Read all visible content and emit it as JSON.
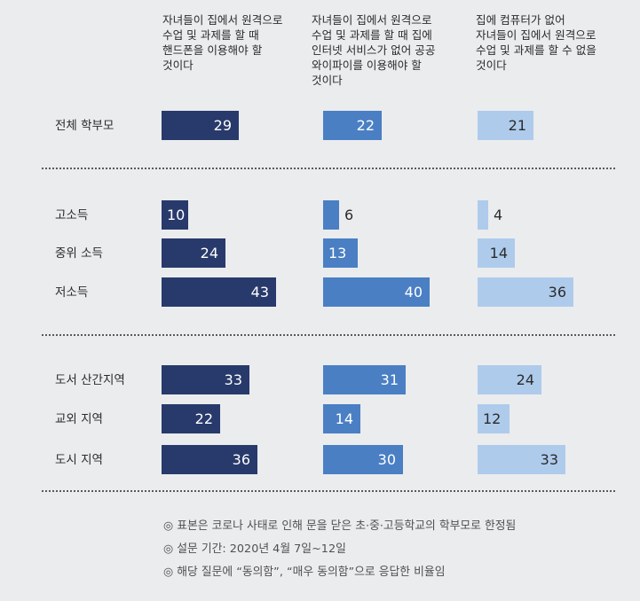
{
  "chart_data": {
    "type": "bar",
    "orientation": "horizontal",
    "series": [
      {
        "name": "자녀들이 집에서 원격으로 수업 및 과제를 할 때 핸드폰을 이용해야 할 것이다",
        "name_lines": [
          "자녀들이 집에서 원격으로",
          "수업 및 과제를 할 때",
          "핸드폰을 이용해야 할",
          "것이다"
        ],
        "values": [
          29,
          10,
          24,
          43,
          33,
          22,
          36
        ]
      },
      {
        "name": "자녀들이 집에서 원격으로 수업 및 과제를 할 때 집에 인터넷 서비스가 없어 공공 와이파이를 이용해야 할 것이다",
        "name_lines": [
          "자녀들이 집에서 원격으로",
          "수업 및 과제를 할 때 집에",
          "인터넷 서비스가 없어 공공",
          "와이파이를 이용해야 할",
          "것이다"
        ],
        "values": [
          22,
          6,
          13,
          40,
          31,
          14,
          30
        ]
      },
      {
        "name": "집에 컴퓨터가 없어 자녀들이 집에서 원격으로 수업 및 과제를 할 수 없을 것이다",
        "name_lines": [
          "집에 컴퓨터가 없어",
          "자녀들이 집에서 원격으로",
          "수업 및 과제를 할 수 없을",
          "것이다"
        ],
        "values": [
          21,
          4,
          14,
          36,
          24,
          12,
          33
        ]
      }
    ],
    "categories": [
      "전체 학부모",
      "고소득",
      "중위 소득",
      "저소득",
      "도서 산간지역",
      "교외 지역",
      "도시 지역"
    ],
    "groups": [
      [
        0
      ],
      [
        1,
        2,
        3
      ],
      [
        4,
        5,
        6
      ]
    ],
    "colors": [
      "#283a6b",
      "#4a7fc4",
      "#aecbec"
    ],
    "xlim": [
      0,
      50
    ],
    "grid": false,
    "legend": "none"
  },
  "notes": [
    "◎ 표본은 코로나 사태로 인해 문을 닫은 초·중·고등학교의 학부모로 한정됨",
    "◎ 설문 기간: 2020년 4월 7일~12일",
    "◎ 해당 질문에 “동의함”, “매우 동의함”으로 응답한 비율임"
  ]
}
